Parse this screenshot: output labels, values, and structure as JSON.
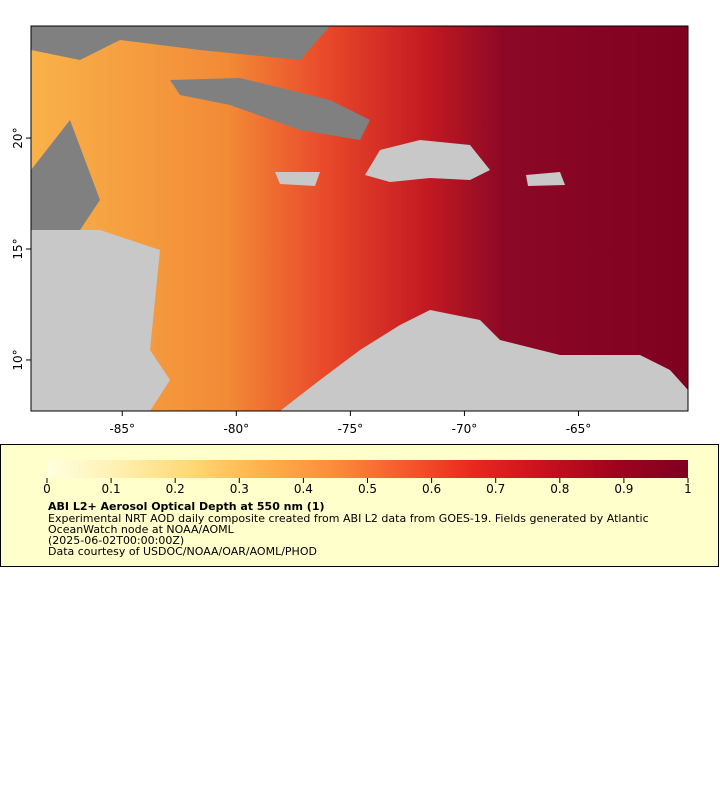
{
  "map": {
    "xlim": [
      -89,
      -60.2
    ],
    "ylim": [
      7.7,
      25.05
    ],
    "xticks": [
      {
        "value": -85,
        "label": "-85°"
      },
      {
        "value": -80,
        "label": "-80°"
      },
      {
        "value": -75,
        "label": "-75°"
      },
      {
        "value": -70,
        "label": "-70°"
      },
      {
        "value": -65,
        "label": "-65°"
      }
    ],
    "yticks": [
      {
        "value": 10,
        "label": "10°"
      },
      {
        "value": 15,
        "label": "15°"
      },
      {
        "value": 20,
        "label": "20°"
      }
    ]
  },
  "colorbar": {
    "range": [
      0,
      1
    ],
    "ticks": [
      0,
      {
        "value": 0.1,
        "label": "0.1"
      },
      {
        "value": 0.2,
        "label": "0.2"
      },
      {
        "value": 0.3,
        "label": "0.3"
      },
      {
        "value": 0.4,
        "label": "0.4"
      },
      {
        "value": 0.5,
        "label": "0.5"
      },
      {
        "value": 0.6,
        "label": "0.6"
      },
      {
        "value": 0.7,
        "label": "0.7"
      },
      {
        "value": 0.8,
        "label": "0.8"
      },
      {
        "value": 0.9,
        "label": "0.9"
      },
      1
    ],
    "colors": [
      "#ffffe0",
      "#fff0b0",
      "#fed976",
      "#feb24c",
      "#fd8d3c",
      "#f75a2c",
      "#e8281e",
      "#c8101e",
      "#a0021e",
      "#800020"
    ]
  },
  "legend": {
    "title": "ABI L2+ Aerosol Optical Depth at 550 nm (1)",
    "lines": [
      "Experimental NRT AOD daily composite created from ABI L2 data from GOES-19. Fields generated by Atlantic",
      "OceanWatch node at NOAA/AOML",
      "(2025-06-02T00:00:00Z)",
      "Data courtesy of USDOC/NOAA/OAR/AOML/PHOD"
    ]
  }
}
